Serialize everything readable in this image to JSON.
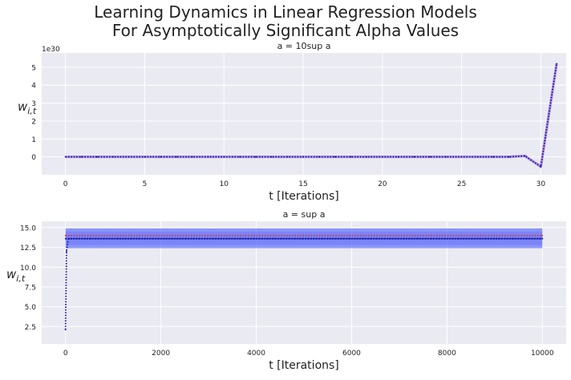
{
  "figure": {
    "title_line1": "Learning Dynamics in Linear Regression Models",
    "title_line2": "For Asymptotically Significant Alpha Values"
  },
  "colors": {
    "panel_bg": "#EAEAF2",
    "grid": "#FFFFFF",
    "line_purple": "#6A1FC9",
    "line_blue_dotted": "#1A1AA0",
    "line_red_dotted": "#D23A3A",
    "band_blue": "#3B4CFF"
  },
  "chart_data": [
    {
      "type": "line",
      "title": "a = 10sup a",
      "xlabel": "t [Iterations]",
      "ylabel": "w_{i,t}",
      "y_scale_note": "1e30",
      "xlim": [
        -1.5,
        31.6
      ],
      "ylim": [
        -1.0,
        5.8
      ],
      "xticks": [
        0,
        5,
        10,
        15,
        20,
        25,
        30
      ],
      "yticks": [
        0,
        1,
        2,
        3,
        4,
        5
      ],
      "grid": true,
      "series": [
        {
          "style": "dotted",
          "x": [
            0,
            1,
            2,
            3,
            4,
            5,
            6,
            7,
            8,
            9,
            10,
            11,
            12,
            13,
            14,
            15,
            16,
            17,
            18,
            19,
            20,
            21,
            22,
            23,
            24,
            25,
            26,
            27,
            28,
            29,
            30,
            31
          ],
          "values": [
            0,
            0,
            0,
            0,
            0,
            0,
            0,
            0,
            0,
            0,
            0,
            0,
            0,
            0,
            0,
            0,
            0,
            0,
            0,
            0,
            0,
            0,
            0,
            0,
            0,
            0,
            0,
            0,
            0,
            0.05,
            -0.55,
            5.2
          ]
        }
      ]
    },
    {
      "type": "line",
      "title": "a = sup a",
      "xlabel": "t [Iterations]",
      "ylabel": "w_{i,t}",
      "xlim": [
        -500,
        10500
      ],
      "ylim": [
        0.3,
        15.8
      ],
      "xticks": [
        0,
        2000,
        4000,
        6000,
        8000,
        10000
      ],
      "yticks": [
        2.5,
        5.0,
        7.5,
        10.0,
        12.5,
        15.0
      ],
      "grid": true,
      "band": {
        "x": [
          0,
          10000
        ],
        "low": 12.4,
        "high": 14.9
      },
      "series": [
        {
          "style": "dotted",
          "color_key": "line_red_dotted",
          "x": [
            0,
            10000
          ],
          "values": [
            14.0,
            14.0
          ]
        },
        {
          "style": "dotted",
          "color_key": "line_blue_dotted",
          "x": [
            0,
            10000
          ],
          "values": [
            13.6,
            13.6
          ]
        },
        {
          "style": "dotted",
          "color_key": "line_blue_dotted",
          "x": [
            0,
            20,
            60,
            10000
          ],
          "values": [
            2.1,
            12.0,
            13.6,
            13.6
          ]
        }
      ]
    }
  ]
}
